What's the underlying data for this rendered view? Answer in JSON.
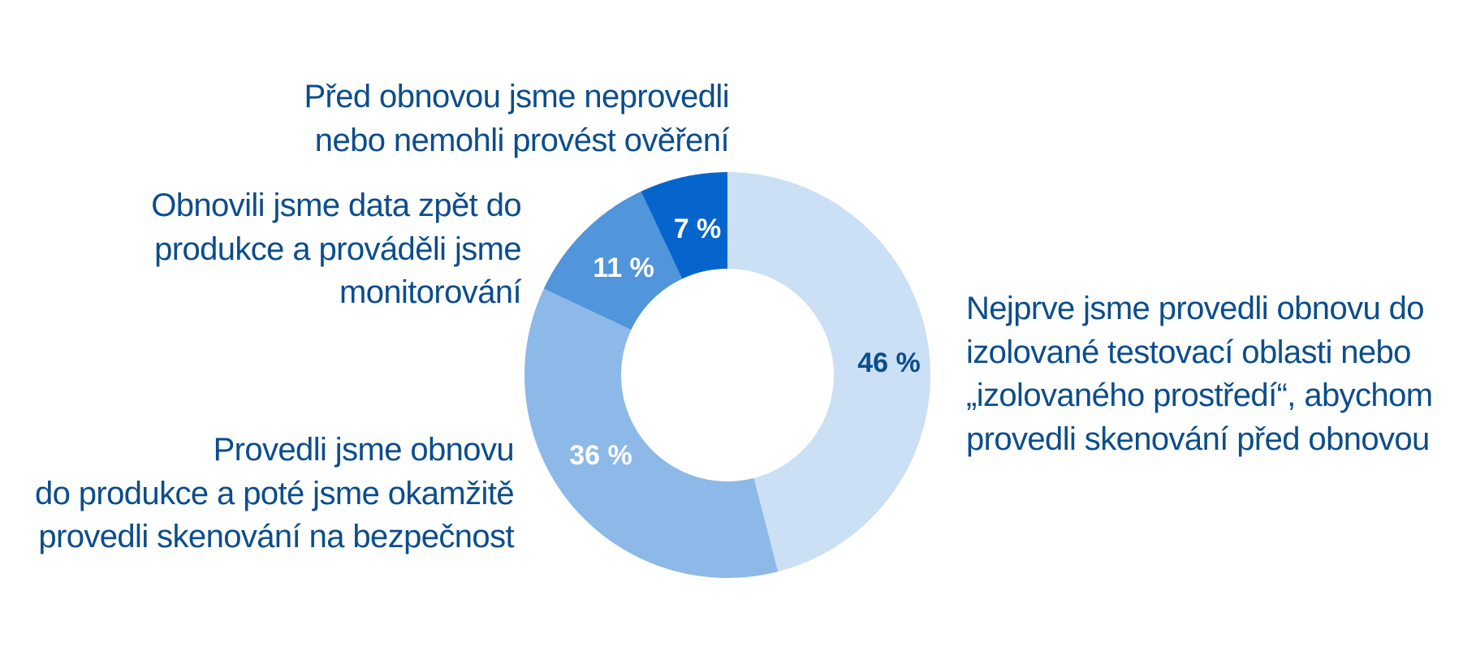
{
  "chart_data": {
    "type": "pie",
    "donut": true,
    "start": "top, clockwise",
    "slices": [
      {
        "value": 46,
        "value_label": "46 %",
        "color": "#cbdff5",
        "value_label_color": "#0b4d8c",
        "label_lines": [
          "Nejprve jsme provedli obnovu do",
          "izolované testovací oblasti nebo",
          "„izolovaného prostředí“, abychom",
          "provedli skenování před obnovou"
        ]
      },
      {
        "value": 36,
        "value_label": "36 %",
        "color": "#8db9e8",
        "value_label_color": "#ffffff",
        "label_lines": [
          "Provedli jsme obnovu",
          "do produkce a poté jsme okamžitě",
          "provedli skenování na bezpečnost"
        ]
      },
      {
        "value": 11,
        "value_label": "11 %",
        "color": "#5195da",
        "value_label_color": "#ffffff",
        "label_lines": [
          "Obnovili jsme data zpět do",
          "produkce a prováděli jsme",
          "monitorování"
        ]
      },
      {
        "value": 7,
        "value_label": "7 %",
        "color": "#0565cc",
        "value_label_color": "#ffffff",
        "label_lines": [
          "Před obnovou jsme neprovedli",
          "nebo nemohli provést ověření"
        ]
      }
    ],
    "label_color": "#0b4d8c"
  }
}
